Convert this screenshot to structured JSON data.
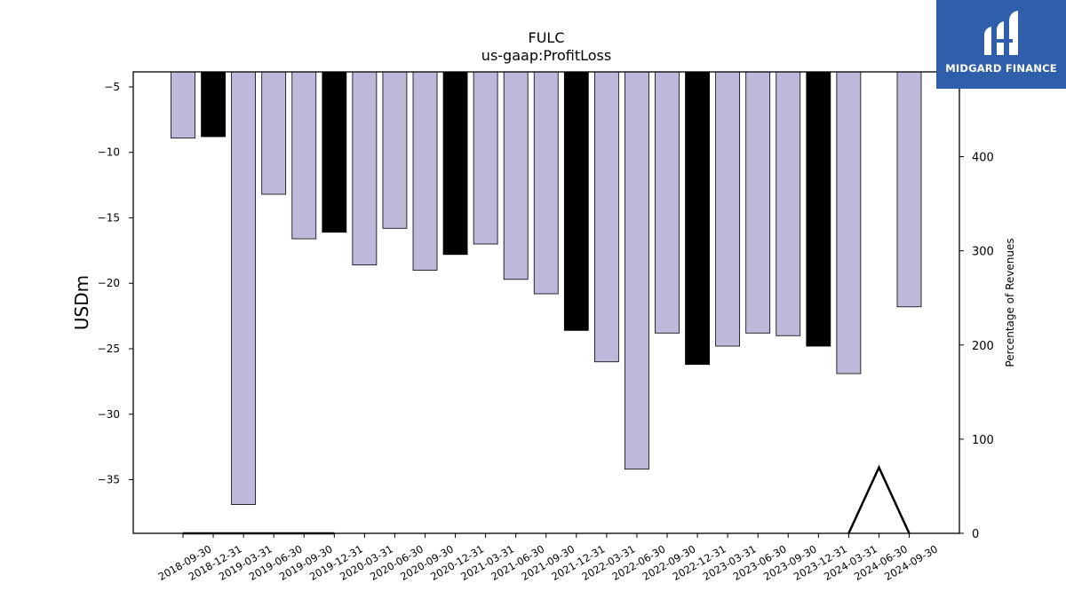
{
  "chart_data": {
    "type": "bar",
    "title": "FULC",
    "subtitle": "us-gaap:ProfitLoss",
    "ylabel": "USDm",
    "y2label": "Percentage of Revenues",
    "categories": [
      "2018-09-30",
      "2018-12-31",
      "2019-03-31",
      "2019-06-30",
      "2019-09-30",
      "2019-12-31",
      "2020-03-31",
      "2020-06-30",
      "2020-09-30",
      "2020-12-31",
      "2021-03-31",
      "2021-06-30",
      "2021-09-30",
      "2021-12-31",
      "2022-03-31",
      "2022-06-30",
      "2022-09-30",
      "2022-12-31",
      "2023-03-31",
      "2023-06-30",
      "2023-09-30",
      "2023-12-31",
      "2024-03-31",
      "2024-06-30",
      "2024-09-30"
    ],
    "values": [
      -8.9,
      -8.8,
      -36.9,
      -13.2,
      -16.6,
      -16.1,
      -18.6,
      -15.8,
      -19.0,
      -17.8,
      -17.0,
      -19.7,
      -20.8,
      -23.6,
      -26.0,
      -34.2,
      -23.8,
      -26.2,
      -24.8,
      -23.8,
      -24.0,
      -24.8,
      -26.9,
      null,
      -21.8
    ],
    "highlight": [
      false,
      true,
      false,
      false,
      false,
      true,
      false,
      false,
      false,
      true,
      false,
      false,
      false,
      true,
      false,
      false,
      false,
      true,
      false,
      false,
      false,
      true,
      false,
      false,
      false
    ],
    "ylim": [
      -39.1,
      -3.85
    ],
    "yticks": [
      -5,
      -10,
      -15,
      -20,
      -25,
      -30,
      -35
    ],
    "y2lim": [
      0,
      490
    ],
    "y2ticks": [
      0,
      100,
      200,
      300,
      400
    ],
    "line_series": {
      "x": [
        "2018-09-30",
        "2018-12-31",
        "2019-03-31",
        "2019-06-30",
        "2019-09-30",
        "2019-12-31",
        "2020-03-31",
        "2020-06-30",
        "2020-09-30",
        "2020-12-31",
        "2021-03-31",
        "2021-06-30",
        "2021-09-30",
        "2021-12-31",
        "2022-03-31",
        "2022-06-30",
        "2022-09-30",
        "2022-12-31",
        "2023-03-31",
        "2023-06-30",
        "2023-09-30",
        "2023-12-31",
        "2024-03-31",
        "2024-06-30",
        "2024-09-30"
      ],
      "y": [
        0,
        0,
        0,
        0,
        0,
        0,
        null,
        null,
        null,
        null,
        null,
        null,
        null,
        null,
        null,
        null,
        null,
        null,
        null,
        null,
        null,
        null,
        0,
        70,
        0
      ]
    },
    "colors": {
      "bar": "#bcb9da",
      "highlight_bar": "#000000",
      "line": "#000000"
    },
    "grid": false
  },
  "logo": {
    "text": "MIDGARD FINANCE",
    "color": "#2f5eab"
  }
}
